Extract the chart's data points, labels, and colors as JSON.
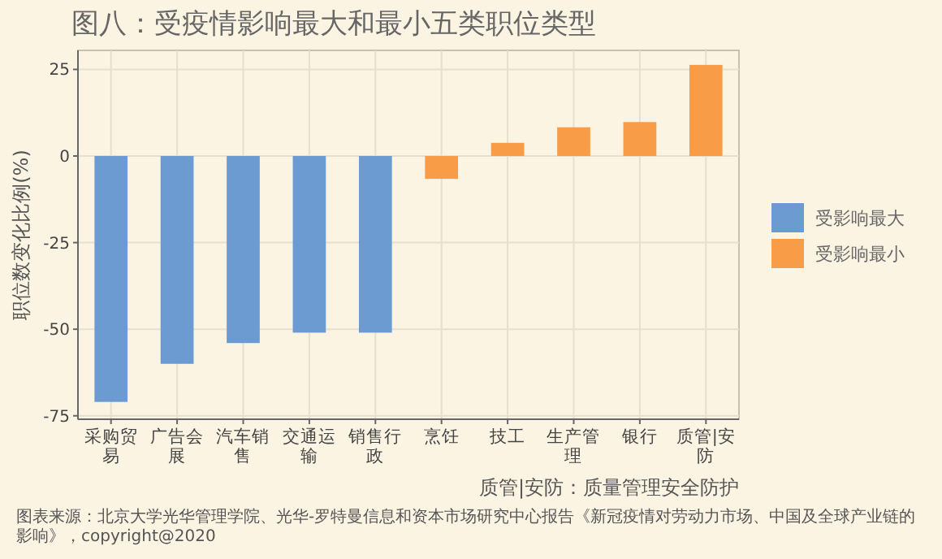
{
  "chart_data": {
    "type": "bar",
    "title": "图八：受疫情影响最大和最小五类职位类型",
    "ylabel": "职位数变化比例(%)",
    "categories": [
      "采购贸易",
      "广告会展",
      "汽车销售",
      "交通运输",
      "销售行政",
      "烹饪",
      "技工",
      "生产管理",
      "银行",
      "质管|安防"
    ],
    "series": [
      {
        "name": "受影响最大",
        "color": "#6c9bd2",
        "values": [
          -71,
          -60,
          -54,
          -51,
          -51,
          null,
          null,
          null,
          null,
          null
        ]
      },
      {
        "name": "受影响最小",
        "color": "#f89c47",
        "values": [
          null,
          null,
          null,
          null,
          null,
          -6.6,
          3.8,
          8.3,
          9.8,
          26.3
        ]
      }
    ],
    "ylim": [
      -76,
      30.5
    ],
    "yticks": [
      -75,
      -50,
      -25,
      0,
      25
    ],
    "grid": true,
    "legend": "right",
    "annotations": [
      "质管|安防：质量管理安全防护",
      "图表来源：北京大学光华管理学院、光华-罗特曼信息和资本市场研究中心报告《新冠疫情对劳动力市场、中国及全球产业链的影响》，copyright@2020"
    ]
  }
}
